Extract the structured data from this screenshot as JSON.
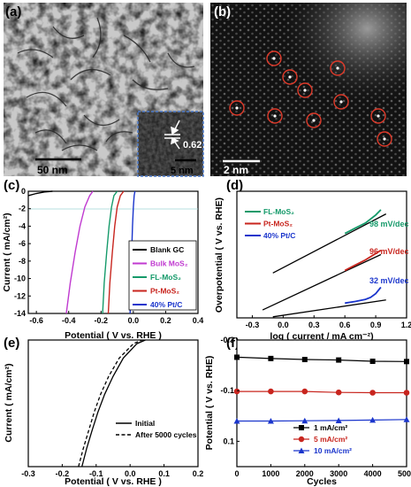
{
  "colors": {
    "blank": "#000000",
    "bulk": "#c03ad0",
    "fl": "#159a6a",
    "pt": "#c8251e",
    "ptc": "#1a35cc",
    "tafel_fit": "#000000",
    "stem_circle": "#e03a2a",
    "inset_border": "#4a78c8"
  },
  "panels": {
    "a": {
      "label": "(a)",
      "scale": "50 nm",
      "inset_scale": "5 nm",
      "lattice": "0.62 nm"
    },
    "b": {
      "label": "(b)",
      "scale": "2 nm"
    },
    "c": {
      "label": "(c)"
    },
    "d": {
      "label": "(d)"
    },
    "e": {
      "label": "(e)"
    },
    "f": {
      "label": "(f)"
    }
  },
  "chart_data": [
    {
      "panel": "c",
      "type": "line",
      "xlabel": "Potential ( V vs. RHE )",
      "ylabel": "Current ( mA/cm²)",
      "xlim": [
        -0.65,
        0.4
      ],
      "ylim": [
        -14,
        0
      ],
      "xticks": [
        "-0.6",
        "-0.4",
        "-0.2",
        "0.0",
        "0.2",
        "0.4"
      ],
      "yticks": [
        "0",
        "-2",
        "-4",
        "-6",
        "-8",
        "-10",
        "-12",
        "-14"
      ],
      "legend": "bottom-right",
      "series": [
        {
          "name": "Blank GC",
          "color_key": "blank",
          "x": [
            -0.65,
            -0.6,
            -0.55,
            -0.5
          ],
          "y": [
            -0.5,
            -0.25,
            -0.08,
            0
          ]
        },
        {
          "name": "Bulk MoS₂",
          "color_key": "bulk",
          "x": [
            -0.415,
            -0.39,
            -0.36,
            -0.33,
            -0.3,
            -0.27,
            -0.25
          ],
          "y": [
            -14,
            -10.5,
            -7,
            -4,
            -1.8,
            -0.5,
            0
          ]
        },
        {
          "name": "FL-MoS₂",
          "color_key": "fl",
          "x": [
            -0.19,
            -0.18,
            -0.165,
            -0.15,
            -0.135,
            -0.12,
            -0.1
          ],
          "y": [
            -14,
            -10.5,
            -7,
            -4,
            -1.8,
            -0.5,
            0
          ]
        },
        {
          "name": "Pt-MoS₂",
          "color_key": "pt",
          "x": [
            -0.155,
            -0.145,
            -0.13,
            -0.115,
            -0.1,
            -0.08,
            -0.06
          ],
          "y": [
            -14,
            -10.5,
            -7,
            -4,
            -1.8,
            -0.5,
            0
          ]
        },
        {
          "name": "40% Pt/C",
          "color_key": "ptc",
          "x": [
            -0.02,
            -0.015,
            -0.01,
            -0.005,
            0.0,
            0.005,
            0.01
          ],
          "y": [
            -14,
            -10.5,
            -7,
            -4,
            -1.8,
            -0.5,
            0
          ]
        }
      ]
    },
    {
      "panel": "d",
      "type": "line",
      "xlabel": "log ( current / mA cm⁻²)",
      "ylabel": "Overpotential ( V vs. RHE)",
      "xlim": [
        -0.45,
        1.2
      ],
      "ylim": [
        0,
        0.24
      ],
      "xticks": [
        "-0.3",
        "0.0",
        "0.3",
        "0.6",
        "0.9",
        "1.2"
      ],
      "legend": "top-left",
      "annotations": [
        "98 mV/dec",
        "96 mV/dec",
        "32 mV/dec"
      ],
      "series": [
        {
          "name": "FL-MoS₂",
          "color_key": "fl",
          "x": [
            0.6,
            0.7,
            0.8,
            0.9,
            0.95
          ],
          "y": [
            0.16,
            0.17,
            0.18,
            0.195,
            0.205
          ],
          "fit": [
            [
              -0.1,
              0.085
            ],
            [
              1.0,
              0.197
            ]
          ]
        },
        {
          "name": "Pt-MoS₂",
          "color_key": "pt",
          "x": [
            0.6,
            0.7,
            0.8,
            0.9,
            0.95
          ],
          "y": [
            0.09,
            0.1,
            0.11,
            0.122,
            0.128
          ],
          "fit": [
            [
              -0.2,
              0.015
            ],
            [
              0.95,
              0.12
            ]
          ]
        },
        {
          "name": "40% Pt/C",
          "color_key": "ptc",
          "x": [
            0.6,
            0.7,
            0.8,
            0.85,
            0.9,
            0.95
          ],
          "y": [
            0.028,
            0.031,
            0.035,
            0.039,
            0.046,
            0.058
          ],
          "fit": [
            [
              -0.1,
              0.002
            ],
            [
              1.0,
              0.034
            ]
          ]
        }
      ]
    },
    {
      "panel": "e",
      "type": "line",
      "xlabel": "Potential ( V vs. RHE )",
      "ylabel": "Current ( mA/cm²)",
      "xlim": [
        -0.3,
        0.2
      ],
      "ylim": [
        -14,
        0
      ],
      "xticks": [
        "-0.3",
        "-0.2",
        "-0.1",
        "0.0",
        "0.1",
        "0.2"
      ],
      "legend": "middle-right",
      "series": [
        {
          "name": "Initial",
          "style": "solid",
          "x": [
            -0.142,
            -0.128,
            -0.112,
            -0.095,
            -0.075,
            -0.05,
            -0.02,
            0.02,
            0.045
          ],
          "y": [
            -14,
            -12,
            -10,
            -8,
            -6,
            -4,
            -2,
            -0.4,
            0
          ]
        },
        {
          "name": "After 5000 cycles",
          "style": "dashed",
          "x": [
            -0.152,
            -0.138,
            -0.122,
            -0.106,
            -0.087,
            -0.063,
            -0.032,
            0.01,
            0.035
          ],
          "y": [
            -14,
            -12,
            -10,
            -8,
            -6,
            -4,
            -2,
            -0.4,
            0
          ]
        }
      ]
    },
    {
      "panel": "f",
      "type": "line",
      "xlabel": "Cycles",
      "ylabel": "Potential ( V vs. RHE)",
      "xlim": [
        0,
        5000
      ],
      "ylim": [
        -0.3,
        0.2
      ],
      "y_inverted": true,
      "xticks": [
        "0",
        "1000",
        "2000",
        "3000",
        "4000",
        "5000"
      ],
      "yticks": [
        "-0.3",
        "-0.1",
        "0.1"
      ],
      "legend": "bottom-center",
      "series": [
        {
          "name": "1  mA/cm²",
          "color_key": "blank",
          "marker": "square",
          "x": [
            0,
            1000,
            2000,
            3000,
            4000,
            5000
          ],
          "y": [
            -0.232,
            -0.227,
            -0.223,
            -0.221,
            -0.216,
            -0.215
          ]
        },
        {
          "name": "5  mA/cm²",
          "color_key": "pt",
          "marker": "circle",
          "x": [
            0,
            1000,
            2000,
            3000,
            4000,
            5000
          ],
          "y": [
            -0.097,
            -0.097,
            -0.097,
            -0.093,
            -0.092,
            -0.092
          ]
        },
        {
          "name": "10 mA/cm²",
          "color_key": "ptc",
          "marker": "triangle",
          "x": [
            0,
            1000,
            2000,
            3000,
            4000,
            5000
          ],
          "y": [
            0.02,
            0.02,
            0.019,
            0.018,
            0.016,
            0.014
          ]
        }
      ]
    }
  ]
}
